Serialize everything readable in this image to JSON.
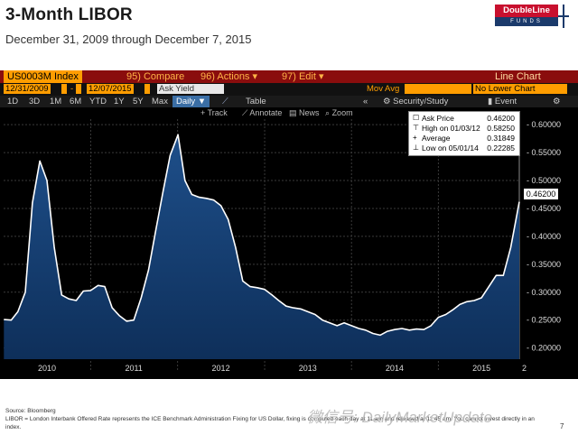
{
  "header": {
    "title": "3-Month LIBOR",
    "subtitle": "December 31, 2009 through December 7, 2015",
    "logo_top": "DoubleLine",
    "logo_bottom": "FUNDS"
  },
  "bloomberg": {
    "security": "US0003M Index",
    "menu": [
      {
        "key": "95)",
        "label": "Compare"
      },
      {
        "key": "96)",
        "label": "Actions"
      },
      {
        "key": "97)",
        "label": "Edit"
      }
    ],
    "mode": "Line Chart",
    "start_date": "12/31/2009",
    "end_date": "12/07/2015",
    "field": "Ask Yield",
    "mov_avg_label": "Mov Avg",
    "lower_chart": "No Lower Chart",
    "periods": [
      "1D",
      "3D",
      "1M",
      "6M",
      "YTD",
      "1Y",
      "5Y",
      "Max"
    ],
    "frequency": "Daily",
    "table_label": "Table",
    "security_study": "Security/Study",
    "event_label": "Event",
    "tools": [
      "Track",
      "Annotate",
      "News",
      "Zoom"
    ],
    "last_value_box": "0.46200"
  },
  "colors": {
    "fill": "#0e2f5a",
    "line": "#ffffff",
    "bb_red": "#8a0d0d",
    "bb_orange": "#ff9d00"
  },
  "chart_data": {
    "type": "area",
    "title": "3-Month LIBOR",
    "ylabel": "",
    "xlabel": "",
    "ylim": [
      0.18,
      0.61
    ],
    "y_ticks": [
      "0.20000",
      "0.25000",
      "0.30000",
      "0.35000",
      "0.40000",
      "0.45000",
      "0.50000",
      "0.55000",
      "0.60000"
    ],
    "x_labels": [
      "2010",
      "2011",
      "2012",
      "2013",
      "2014",
      "2015"
    ],
    "legend": [
      {
        "icon": "☐",
        "label": "Ask Price",
        "value": "0.46200"
      },
      {
        "icon": "⊤",
        "label": "High on 01/03/12",
        "value": "0.58250"
      },
      {
        "icon": "+",
        "label": "Average",
        "value": "0.31849"
      },
      {
        "icon": "⊥",
        "label": "Low on 05/01/14",
        "value": "0.22285"
      }
    ],
    "series": [
      {
        "name": "Ask Price",
        "x": [
          "2010-01-01",
          "2010-02-01",
          "2010-03-01",
          "2010-04-01",
          "2010-05-01",
          "2010-06-01",
          "2010-07-01",
          "2010-08-01",
          "2010-09-01",
          "2010-10-01",
          "2010-11-01",
          "2010-12-01",
          "2011-01-01",
          "2011-02-01",
          "2011-03-01",
          "2011-04-01",
          "2011-05-01",
          "2011-06-01",
          "2011-07-01",
          "2011-08-01",
          "2011-09-01",
          "2011-10-01",
          "2011-11-01",
          "2011-12-01",
          "2012-01-03",
          "2012-02-01",
          "2012-03-01",
          "2012-04-01",
          "2012-05-01",
          "2012-06-01",
          "2012-07-01",
          "2012-08-01",
          "2012-09-01",
          "2012-10-01",
          "2012-11-01",
          "2012-12-01",
          "2013-01-01",
          "2013-02-01",
          "2013-03-01",
          "2013-04-01",
          "2013-05-01",
          "2013-06-01",
          "2013-07-01",
          "2013-08-01",
          "2013-09-01",
          "2013-10-01",
          "2013-11-01",
          "2013-12-01",
          "2014-01-01",
          "2014-02-01",
          "2014-03-01",
          "2014-04-01",
          "2014-05-01",
          "2014-06-01",
          "2014-07-01",
          "2014-08-01",
          "2014-09-01",
          "2014-10-01",
          "2014-11-01",
          "2014-12-01",
          "2015-01-01",
          "2015-02-01",
          "2015-03-01",
          "2015-04-01",
          "2015-05-01",
          "2015-06-01",
          "2015-07-01",
          "2015-08-01",
          "2015-09-01",
          "2015-10-01",
          "2015-11-01",
          "2015-12-07"
        ],
        "y": [
          0.251,
          0.25,
          0.265,
          0.3,
          0.46,
          0.535,
          0.5,
          0.38,
          0.295,
          0.288,
          0.285,
          0.302,
          0.303,
          0.312,
          0.31,
          0.272,
          0.258,
          0.248,
          0.25,
          0.29,
          0.34,
          0.41,
          0.48,
          0.545,
          0.582,
          0.5,
          0.475,
          0.47,
          0.468,
          0.465,
          0.455,
          0.43,
          0.38,
          0.32,
          0.31,
          0.308,
          0.305,
          0.295,
          0.285,
          0.275,
          0.272,
          0.27,
          0.265,
          0.26,
          0.25,
          0.245,
          0.24,
          0.245,
          0.24,
          0.235,
          0.232,
          0.226,
          0.223,
          0.23,
          0.233,
          0.235,
          0.232,
          0.234,
          0.233,
          0.24,
          0.255,
          0.26,
          0.268,
          0.278,
          0.283,
          0.285,
          0.29,
          0.31,
          0.33,
          0.33,
          0.38,
          0.462
        ]
      }
    ],
    "grid": true,
    "legend_placement": "top-right"
  },
  "footer": {
    "source": "Source: Bloomberg",
    "footnote": "LIBOR = London Interbank Offered Rate represents the ICE Benchmark Administration Fixing for US Dollar, fixing is computed each day at 11 am and released at 11:45 am. You cannot invest directly in an index.",
    "page": "7",
    "watermark": "微信号: DailyMarketUpdate"
  }
}
